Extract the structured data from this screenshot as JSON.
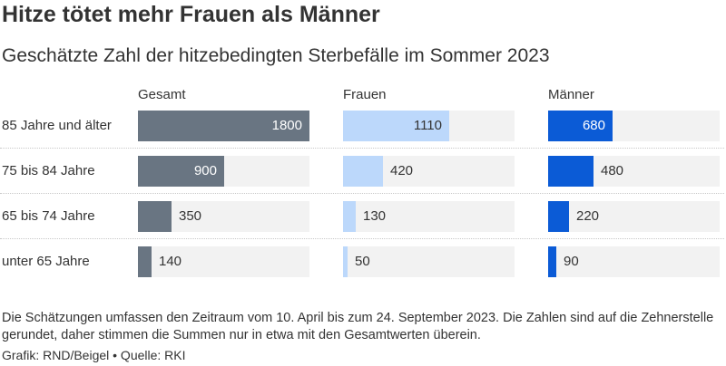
{
  "title": "Hitze tötet mehr Frauen als Männer",
  "subtitle": "Geschätzte Zahl der hitzebedingten Sterbefälle im Sommer 2023",
  "colors": {
    "gesamt": "#697582",
    "frauen": "#bcd8fb",
    "maenner": "#0b5bd6",
    "track": "#f2f2f2"
  },
  "chart_data": {
    "type": "bar",
    "categories": [
      "85 Jahre und älter",
      "75 bis 84 Jahre",
      "65 bis 74 Jahre",
      "unter 65 Jahre"
    ],
    "series": [
      {
        "name": "Gesamt",
        "values": [
          1800,
          900,
          350,
          140
        ]
      },
      {
        "name": "Frauen",
        "values": [
          1110,
          420,
          130,
          50
        ]
      },
      {
        "name": "Männer",
        "values": [
          680,
          480,
          220,
          90
        ]
      }
    ],
    "xlim": [
      0,
      1800
    ]
  },
  "footnote": "Die Schätzungen umfassen den Zeitraum vom 10. April bis zum 24. September 2023. Die Zahlen sind auf die Zehnerstelle gerundet, daher stimmen die Summen nur in etwa mit den Gesamtwerten überein.",
  "credit": "Grafik: RND/Beigel • Quelle: RKI"
}
